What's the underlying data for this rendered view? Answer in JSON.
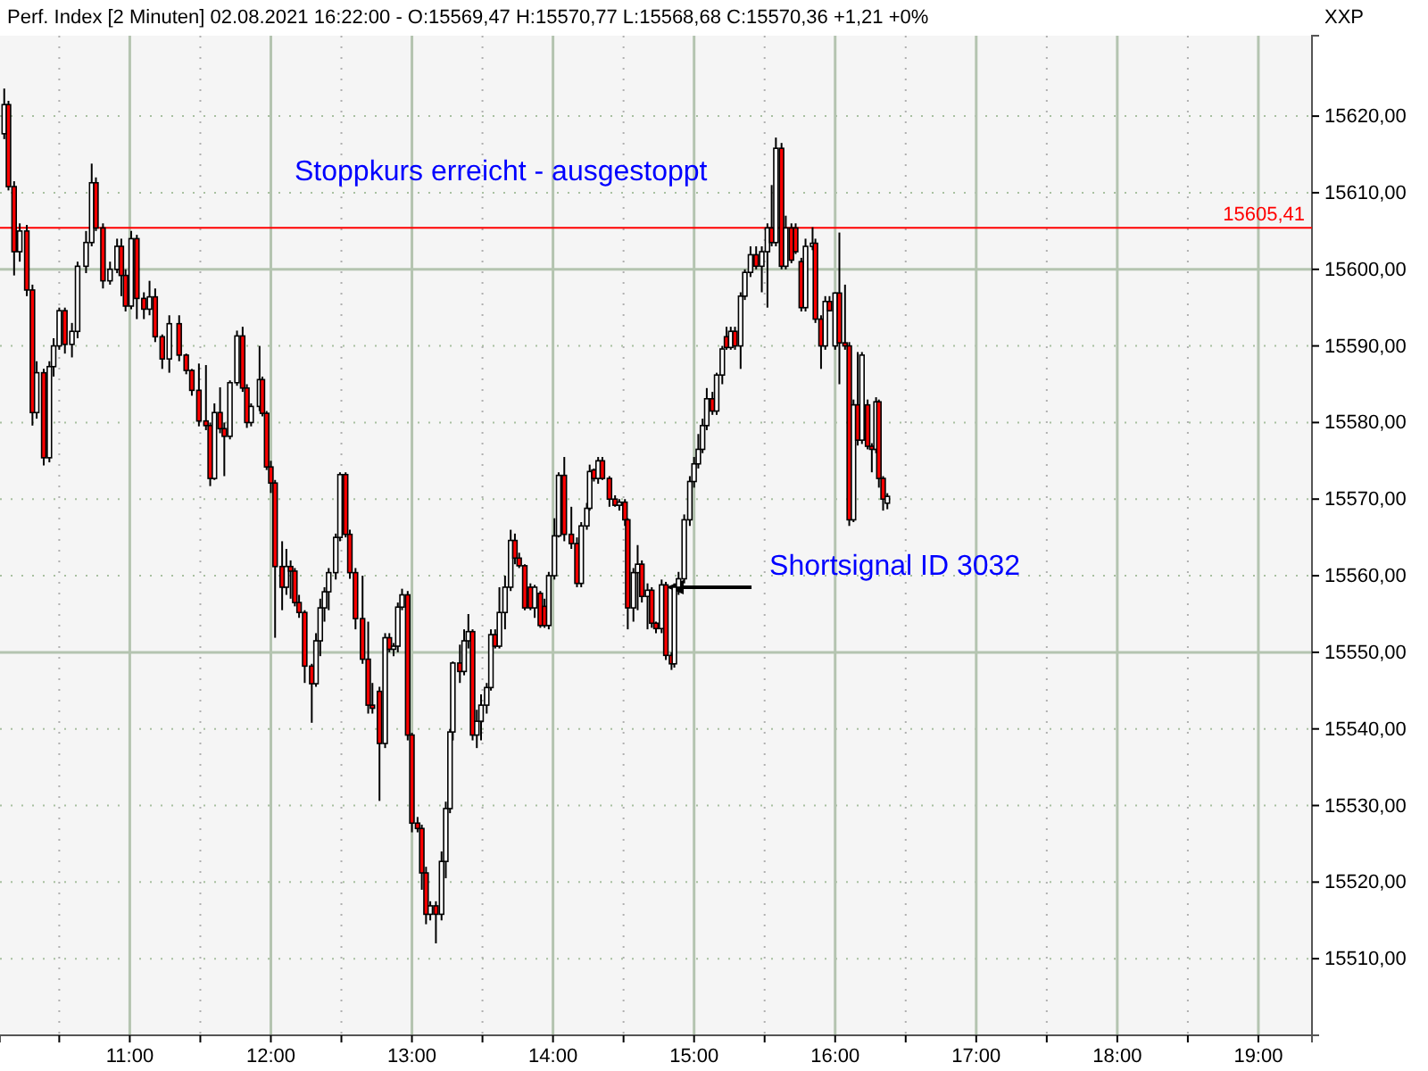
{
  "chart_data": {
    "type": "candlestick",
    "title": "Perf. Index [2 Minuten] 02.08.2021 16:22:00 - O:15569,47 H:15570,77 L:15568,68 C:15570,36 +1,21 +0%",
    "xlim": [
      10.08,
      19.38
    ],
    "xticks": [
      {
        "value": 10.5,
        "label": null
      },
      {
        "value": 11,
        "label": "11:00"
      },
      {
        "value": 11.5,
        "label": null
      },
      {
        "value": 12,
        "label": "12:00"
      },
      {
        "value": 12.5,
        "label": null
      },
      {
        "value": 13,
        "label": "13:00"
      },
      {
        "value": 13.5,
        "label": null
      },
      {
        "value": 14,
        "label": "14:00"
      },
      {
        "value": 14.5,
        "label": null
      },
      {
        "value": 15,
        "label": "15:00"
      },
      {
        "value": 15.5,
        "label": null
      },
      {
        "value": 16,
        "label": "16:00"
      },
      {
        "value": 16.5,
        "label": null
      },
      {
        "value": 17,
        "label": "17:00"
      },
      {
        "value": 17.5,
        "label": null
      },
      {
        "value": 18,
        "label": "18:00"
      },
      {
        "value": 18.5,
        "label": null
      },
      {
        "value": 19,
        "label": "19:00"
      }
    ],
    "ylim": [
      15500,
      15630.5
    ],
    "yticks": [
      {
        "value": 15510,
        "label": "15510,00"
      },
      {
        "value": 15520,
        "label": "15520,00"
      },
      {
        "value": 15530,
        "label": "15530,00"
      },
      {
        "value": 15540,
        "label": "15540,00"
      },
      {
        "value": 15550,
        "label": "15550,00"
      },
      {
        "value": 15560,
        "label": "15560,00"
      },
      {
        "value": 15570,
        "label": "15570,00"
      },
      {
        "value": 15580,
        "label": "15580,00"
      },
      {
        "value": 15590,
        "label": "15590,00"
      },
      {
        "value": 15600,
        "label": "15600,00"
      },
      {
        "value": 15610,
        "label": "15610,00"
      },
      {
        "value": 15620,
        "label": "15620,00"
      }
    ],
    "grid": true,
    "ref_lines": [
      {
        "axis": "y",
        "value": 15605.41,
        "label": "15605,41",
        "color": "#ff0000"
      }
    ],
    "annotations": [
      "Stoppkurs erreicht - ausgestoppt",
      {
        "text": "Shortsignal ID 3032",
        "x": 14.8,
        "y": 15558.5
      },
      "XXP"
    ],
    "x": [
      10.11,
      10.14,
      10.18,
      10.22,
      10.27,
      10.31,
      10.34,
      10.39,
      10.43,
      10.46,
      10.5,
      10.54,
      10.59,
      10.63,
      10.69,
      10.73,
      10.76,
      10.81,
      10.86,
      10.91,
      10.94,
      10.97,
      11.01,
      11.05,
      11.1,
      11.14,
      11.18,
      11.23,
      11.28,
      11.35,
      11.4,
      11.44,
      11.49,
      11.54,
      11.57,
      11.6,
      11.64,
      11.67,
      11.71,
      11.76,
      11.8,
      11.83,
      11.86,
      11.92,
      11.94,
      11.97,
      12.0,
      12.03,
      12.08,
      12.11,
      12.14,
      12.17,
      12.2,
      12.24,
      12.29,
      12.32,
      12.35,
      12.38,
      12.41,
      12.46,
      12.49,
      12.53,
      12.56,
      12.6,
      12.65,
      12.69,
      12.72,
      12.77,
      12.81,
      12.84,
      12.87,
      12.9,
      12.93,
      12.97,
      13.0,
      13.04,
      13.07,
      13.1,
      13.13,
      13.17,
      13.21,
      13.24,
      13.27,
      13.29,
      13.34,
      13.37,
      13.4,
      13.43,
      13.46,
      13.49,
      13.53,
      13.56,
      13.59,
      13.62,
      13.66,
      13.7,
      13.73,
      13.76,
      13.8,
      13.84,
      13.87,
      13.91,
      13.94,
      13.97,
      14.01,
      14.04,
      14.08,
      14.13,
      14.17,
      14.2,
      14.24,
      14.26,
      14.29,
      14.32,
      14.35,
      14.4,
      14.44,
      14.47,
      14.51,
      14.53,
      14.57,
      14.6,
      14.63,
      14.67,
      14.7,
      14.73,
      14.77,
      14.8,
      14.84,
      14.86,
      14.89,
      14.93,
      14.97,
      15.0,
      15.03,
      15.06,
      15.09,
      15.13,
      15.16,
      15.2,
      15.23,
      15.26,
      15.29,
      15.33,
      15.36,
      15.4,
      15.44,
      15.48,
      15.52,
      15.55,
      15.58,
      15.62,
      15.65,
      15.69,
      15.72,
      15.76,
      15.79,
      15.84,
      15.86,
      15.9,
      15.93,
      15.96,
      16.0,
      16.03,
      16.07,
      16.1,
      16.13,
      16.16,
      16.19,
      16.23,
      16.26,
      16.29,
      16.31,
      16.34,
      16.37
    ],
    "ohlc": [
      [
        15617.7,
        15623.6,
        15617,
        15621.5
      ],
      [
        15621.5,
        15622,
        15610.3,
        15610.8
      ],
      [
        15610.8,
        15611.5,
        15599.2,
        15602.3
      ],
      [
        15602.3,
        15606,
        15601,
        15605
      ],
      [
        15605,
        15605.8,
        15596.5,
        15597.3
      ],
      [
        15597.3,
        15598,
        15579.6,
        15581.3
      ],
      [
        15581.3,
        15588,
        15580.5,
        15586.5
      ],
      [
        15586.5,
        15587,
        15574.4,
        15575.4
      ],
      [
        15575.4,
        15588,
        15574.8,
        15587.3
      ],
      [
        15587.3,
        15591,
        15586,
        15590
      ],
      [
        15590,
        15595,
        15589.5,
        15594.6
      ],
      [
        15594.6,
        15595,
        15589,
        15590.2
      ],
      [
        15590.2,
        15593,
        15588.5,
        15591.9
      ],
      [
        15591.9,
        15601,
        15591,
        15600.4
      ],
      [
        15600.4,
        15605,
        15599.5,
        15603.5
      ],
      [
        15603.5,
        15613.8,
        15603,
        15611.3
      ],
      [
        15611.3,
        15612,
        15605,
        15605.4
      ],
      [
        15605.4,
        15606,
        15597.5,
        15598.5
      ],
      [
        15598.5,
        15601,
        15598,
        15600
      ],
      [
        15600,
        15604,
        15599.5,
        15603
      ],
      [
        15603,
        15604,
        15596.5,
        15599.2
      ],
      [
        15599.2,
        15600,
        15594.5,
        15595.2
      ],
      [
        15595.2,
        15605,
        15594.8,
        15604
      ],
      [
        15604,
        15604.5,
        15593.5,
        15596.2
      ],
      [
        15596.2,
        15597,
        15593.5,
        15594.8
      ],
      [
        15594.8,
        15598.5,
        15594,
        15596.4
      ],
      [
        15596.4,
        15597.5,
        15590.5,
        15591.2
      ],
      [
        15591.2,
        15591.5,
        15587,
        15588.3
      ],
      [
        15588.3,
        15594,
        15586.5,
        15592.9
      ],
      [
        15592.9,
        15594,
        15588,
        15588.8
      ],
      [
        15588.8,
        15589,
        15586.3,
        15586.8
      ],
      [
        15586.8,
        15587,
        15583.5,
        15584.2
      ],
      [
        15584.2,
        15587.7,
        15579.5,
        15580.2
      ],
      [
        15580.2,
        15587.5,
        15579,
        15579.6
      ],
      [
        15579.6,
        15580,
        15571.7,
        15572.7
      ],
      [
        15572.7,
        15582.5,
        15572.5,
        15581.3
      ],
      [
        15581.3,
        15584.6,
        15578.6,
        15579.2
      ],
      [
        15579.2,
        15580,
        15573,
        15578.2
      ],
      [
        15578.2,
        15585.5,
        15577.8,
        15585.2
      ],
      [
        15585.2,
        15592,
        15584.8,
        15591.3
      ],
      [
        15591.3,
        15592.5,
        15584,
        15584.5
      ],
      [
        15584.5,
        15585,
        15579.3,
        15580
      ],
      [
        15580,
        15582.5,
        15579.5,
        15582.1
      ],
      [
        15582.1,
        15590,
        15581.5,
        15585.6
      ],
      [
        15585.6,
        15586,
        15580.8,
        15581.2
      ],
      [
        15581.2,
        15581.5,
        15573.8,
        15574.2
      ],
      [
        15574.2,
        15575,
        15570.8,
        15572.1
      ],
      [
        15572.1,
        15572.5,
        15551.9,
        15561.2
      ],
      [
        15561.2,
        15564.5,
        15555.5,
        15558.5
      ],
      [
        15558.5,
        15563.5,
        15557.5,
        15561.2
      ],
      [
        15561.2,
        15562,
        15557,
        15560.6
      ],
      [
        15560.6,
        15561,
        15556,
        15556.5
      ],
      [
        15556.5,
        15557.5,
        15554.5,
        15555.2
      ],
      [
        15555.2,
        15555.5,
        15546,
        15548.2
      ],
      [
        15548.2,
        15548.5,
        15540.8,
        15545.9
      ],
      [
        15545.9,
        15552.5,
        15545.5,
        15551.5
      ],
      [
        15551.5,
        15557,
        15549.5,
        15555.8
      ],
      [
        15555.8,
        15558.5,
        15554,
        15557.9
      ],
      [
        15557.9,
        15561,
        15555.5,
        15560.4
      ],
      [
        15560.4,
        15565.5,
        15559.5,
        15565
      ],
      [
        15565,
        15573.5,
        15564.5,
        15573.2
      ],
      [
        15573.2,
        15573.5,
        15565,
        15565.4
      ],
      [
        15565.4,
        15566,
        15559.6,
        15560.4
      ],
      [
        15560.4,
        15561,
        15553,
        15554.4
      ],
      [
        15554.4,
        15560,
        15548.5,
        15549.1
      ],
      [
        15549.1,
        15554,
        15542,
        15543.1
      ],
      [
        15543.1,
        15546,
        15542,
        15542.7
      ],
      [
        15544.9,
        15545.5,
        15530.6,
        15538.1
      ],
      [
        15538.1,
        15552.5,
        15537.5,
        15551.9
      ],
      [
        15551.9,
        15552.5,
        15550,
        15550.4
      ],
      [
        15550.4,
        15551.2,
        15549.5,
        15550.8
      ],
      [
        15550.8,
        15556.5,
        15550,
        15555.9
      ],
      [
        15555.9,
        15558.3,
        15555.5,
        15557.5
      ],
      [
        15557.5,
        15558,
        15538.5,
        15539.2
      ],
      [
        15539.2,
        15539.5,
        15526.5,
        15527.7
      ],
      [
        15527.7,
        15528.5,
        15526.5,
        15527
      ],
      [
        15527,
        15527.5,
        15519,
        15521.2
      ],
      [
        15521.2,
        15522,
        15514.5,
        15515.8
      ],
      [
        15515.8,
        15517.5,
        15515,
        15516.9
      ],
      [
        15516.9,
        15517.5,
        15512,
        15515.8
      ],
      [
        15515.8,
        15524,
        15515,
        15522.7
      ],
      [
        15522.7,
        15530.5,
        15520.5,
        15529.6
      ],
      [
        15529.6,
        15540,
        15529,
        15539.6
      ],
      [
        15539.6,
        15548.8,
        15538.5,
        15548.6
      ],
      [
        15548.6,
        15551,
        15546,
        15547.5
      ],
      [
        15547.5,
        15553,
        15547,
        15551.5
      ],
      [
        15551.5,
        15555,
        15550.5,
        15552.7
      ],
      [
        15552.7,
        15553,
        15538.5,
        15539.2
      ],
      [
        15539.2,
        15542.5,
        15537.5,
        15541
      ],
      [
        15541,
        15544.5,
        15538.5,
        15543.1
      ],
      [
        15543.1,
        15546,
        15542,
        15545.4
      ],
      [
        15545.4,
        15553,
        15545,
        15552.3
      ],
      [
        15552.3,
        15553,
        15550.5,
        15550.8
      ],
      [
        15550.8,
        15558.5,
        15550.5,
        15555.2
      ],
      [
        15555.2,
        15560,
        15553,
        15558.5
      ],
      [
        15558.5,
        15566,
        15558,
        15564.6
      ],
      [
        15564.6,
        15565.5,
        15561.5,
        15562.3
      ],
      [
        15562.3,
        15563,
        15561,
        15561.3
      ],
      [
        15561.3,
        15561.5,
        15555.5,
        15555.8
      ],
      [
        15558.5,
        15559,
        15555.5,
        15555.8
      ],
      [
        15555.8,
        15558.8,
        15554.5,
        15558.5
      ],
      [
        15557.7,
        15558,
        15553.2,
        15553.5
      ],
      [
        15556,
        15557,
        15553.2,
        15553.5
      ],
      [
        15553.5,
        15560.5,
        15553,
        15560
      ],
      [
        15560,
        15567.5,
        15559.5,
        15565.2
      ],
      [
        15565.2,
        15573.5,
        15565,
        15573.1
      ],
      [
        15573.1,
        15575.5,
        15564.5,
        15565.4
      ],
      [
        15565.4,
        15569,
        15563.5,
        15564.2
      ],
      [
        15564.2,
        15565,
        15558.5,
        15559
      ],
      [
        15559,
        15567,
        15558.5,
        15566.5
      ],
      [
        15566.5,
        15569.5,
        15566,
        15568.8
      ],
      [
        15568.8,
        15574.5,
        15568.5,
        15573.6
      ],
      [
        15573.8,
        15574,
        15572.3,
        15572.7
      ],
      [
        15572.7,
        15575.5,
        15572,
        15575
      ],
      [
        15575,
        15575.5,
        15572.5,
        15572.7
      ],
      [
        15572.7,
        15573,
        15569,
        15570
      ],
      [
        15570,
        15570.5,
        15569,
        15569.2
      ],
      [
        15569.2,
        15570,
        15568.5,
        15569.6
      ],
      [
        15569.6,
        15570,
        15566.5,
        15567.3
      ],
      [
        15567.3,
        15567.5,
        15553,
        15555.8
      ],
      [
        15555.8,
        15561,
        15554,
        15560.4
      ],
      [
        15560.4,
        15564,
        15555.5,
        15561.5
      ],
      [
        15561.5,
        15562,
        15556.5,
        15557.3
      ],
      [
        15557.3,
        15559,
        15553,
        15558.1
      ],
      [
        15558.1,
        15558.5,
        15553.2,
        15553.8
      ],
      [
        15553.8,
        15554,
        15552.5,
        15553.1
      ],
      [
        15553.1,
        15559.5,
        15552.5,
        15558.8
      ],
      [
        15558.8,
        15559.2,
        15549,
        15549.6
      ],
      [
        15549.6,
        15550,
        15547.7,
        15548.5
      ],
      [
        15548.5,
        15559,
        15548,
        15558.5
      ],
      [
        15558.5,
        15560.5,
        15557.5,
        15559.6
      ],
      [
        15559.6,
        15568,
        15559,
        15567.3
      ],
      [
        15567.3,
        15573,
        15566.5,
        15572.3
      ],
      [
        15572.3,
        15575.5,
        15571.5,
        15574.6
      ],
      [
        15574.6,
        15578.5,
        15574,
        15576.5
      ],
      [
        15576.5,
        15580.5,
        15576,
        15579.6
      ],
      [
        15579.6,
        15584.5,
        15579,
        15583.1
      ],
      [
        15583.1,
        15584,
        15581,
        15581.5
      ],
      [
        15581.5,
        15586.5,
        15581,
        15586.2
      ],
      [
        15586.2,
        15590,
        15585,
        15589.6
      ],
      [
        15591.2,
        15592.5,
        15589.5,
        15589.8
      ],
      [
        15589.8,
        15592.5,
        15589.5,
        15591.9
      ],
      [
        15591.9,
        15592.5,
        15589.5,
        15590
      ],
      [
        15590,
        15597,
        15587,
        15596.5
      ],
      [
        15596.5,
        15600,
        15596,
        15599.6
      ],
      [
        15599.6,
        15603,
        15599,
        15601.9
      ],
      [
        15601.9,
        15603,
        15600,
        15600.4
      ],
      [
        15600.4,
        15603,
        15597,
        15602.3
      ],
      [
        15602.3,
        15606,
        15595,
        15605.4
      ],
      [
        15605.4,
        15611,
        15603,
        15603.5
      ],
      [
        15603.5,
        15617.2,
        15603,
        15615.8
      ],
      [
        15615.8,
        15616.5,
        15600,
        15600.4
      ],
      [
        15600.4,
        15607,
        15600,
        15605.4
      ],
      [
        15605.4,
        15606,
        15600.8,
        15601.2
      ],
      [
        15605.4,
        15606,
        15602,
        15602.3
      ],
      [
        15601,
        15601.5,
        15594.5,
        15595
      ],
      [
        15595,
        15604,
        15594.5,
        15603
      ],
      [
        15603,
        15605.5,
        15602.5,
        15603.4
      ],
      [
        15603.4,
        15604,
        15593,
        15593.5
      ],
      [
        15593.5,
        15594,
        15587,
        15590
      ],
      [
        15590,
        15596.5,
        15589.5,
        15595.8
      ],
      [
        15595.8,
        15596.5,
        15594.5,
        15594.6
      ],
      [
        15590,
        15597,
        15589.5,
        15596.9
      ],
      [
        15596.9,
        15604.8,
        15585,
        15590.4
      ],
      [
        15590.4,
        15598,
        15589.5,
        15590
      ],
      [
        15590,
        15590.5,
        15566.5,
        15567.3
      ],
      [
        15567.3,
        15583,
        15567,
        15582.3
      ],
      [
        15582.3,
        15589.2,
        15577,
        15577.7
      ],
      [
        15577.7,
        15589.2,
        15577.2,
        15588.8
      ],
      [
        15582.3,
        15583,
        15576.5,
        15576.9
      ],
      [
        15576.9,
        15577.3,
        15573.5,
        15576.5
      ],
      [
        15576.5,
        15583.3,
        15576,
        15582.7
      ],
      [
        15582.7,
        15583,
        15571.5,
        15572.7
      ],
      [
        15572.7,
        15573,
        15568.5,
        15570
      ],
      [
        15569.47,
        15570.77,
        15568.68,
        15570.36
      ]
    ]
  }
}
